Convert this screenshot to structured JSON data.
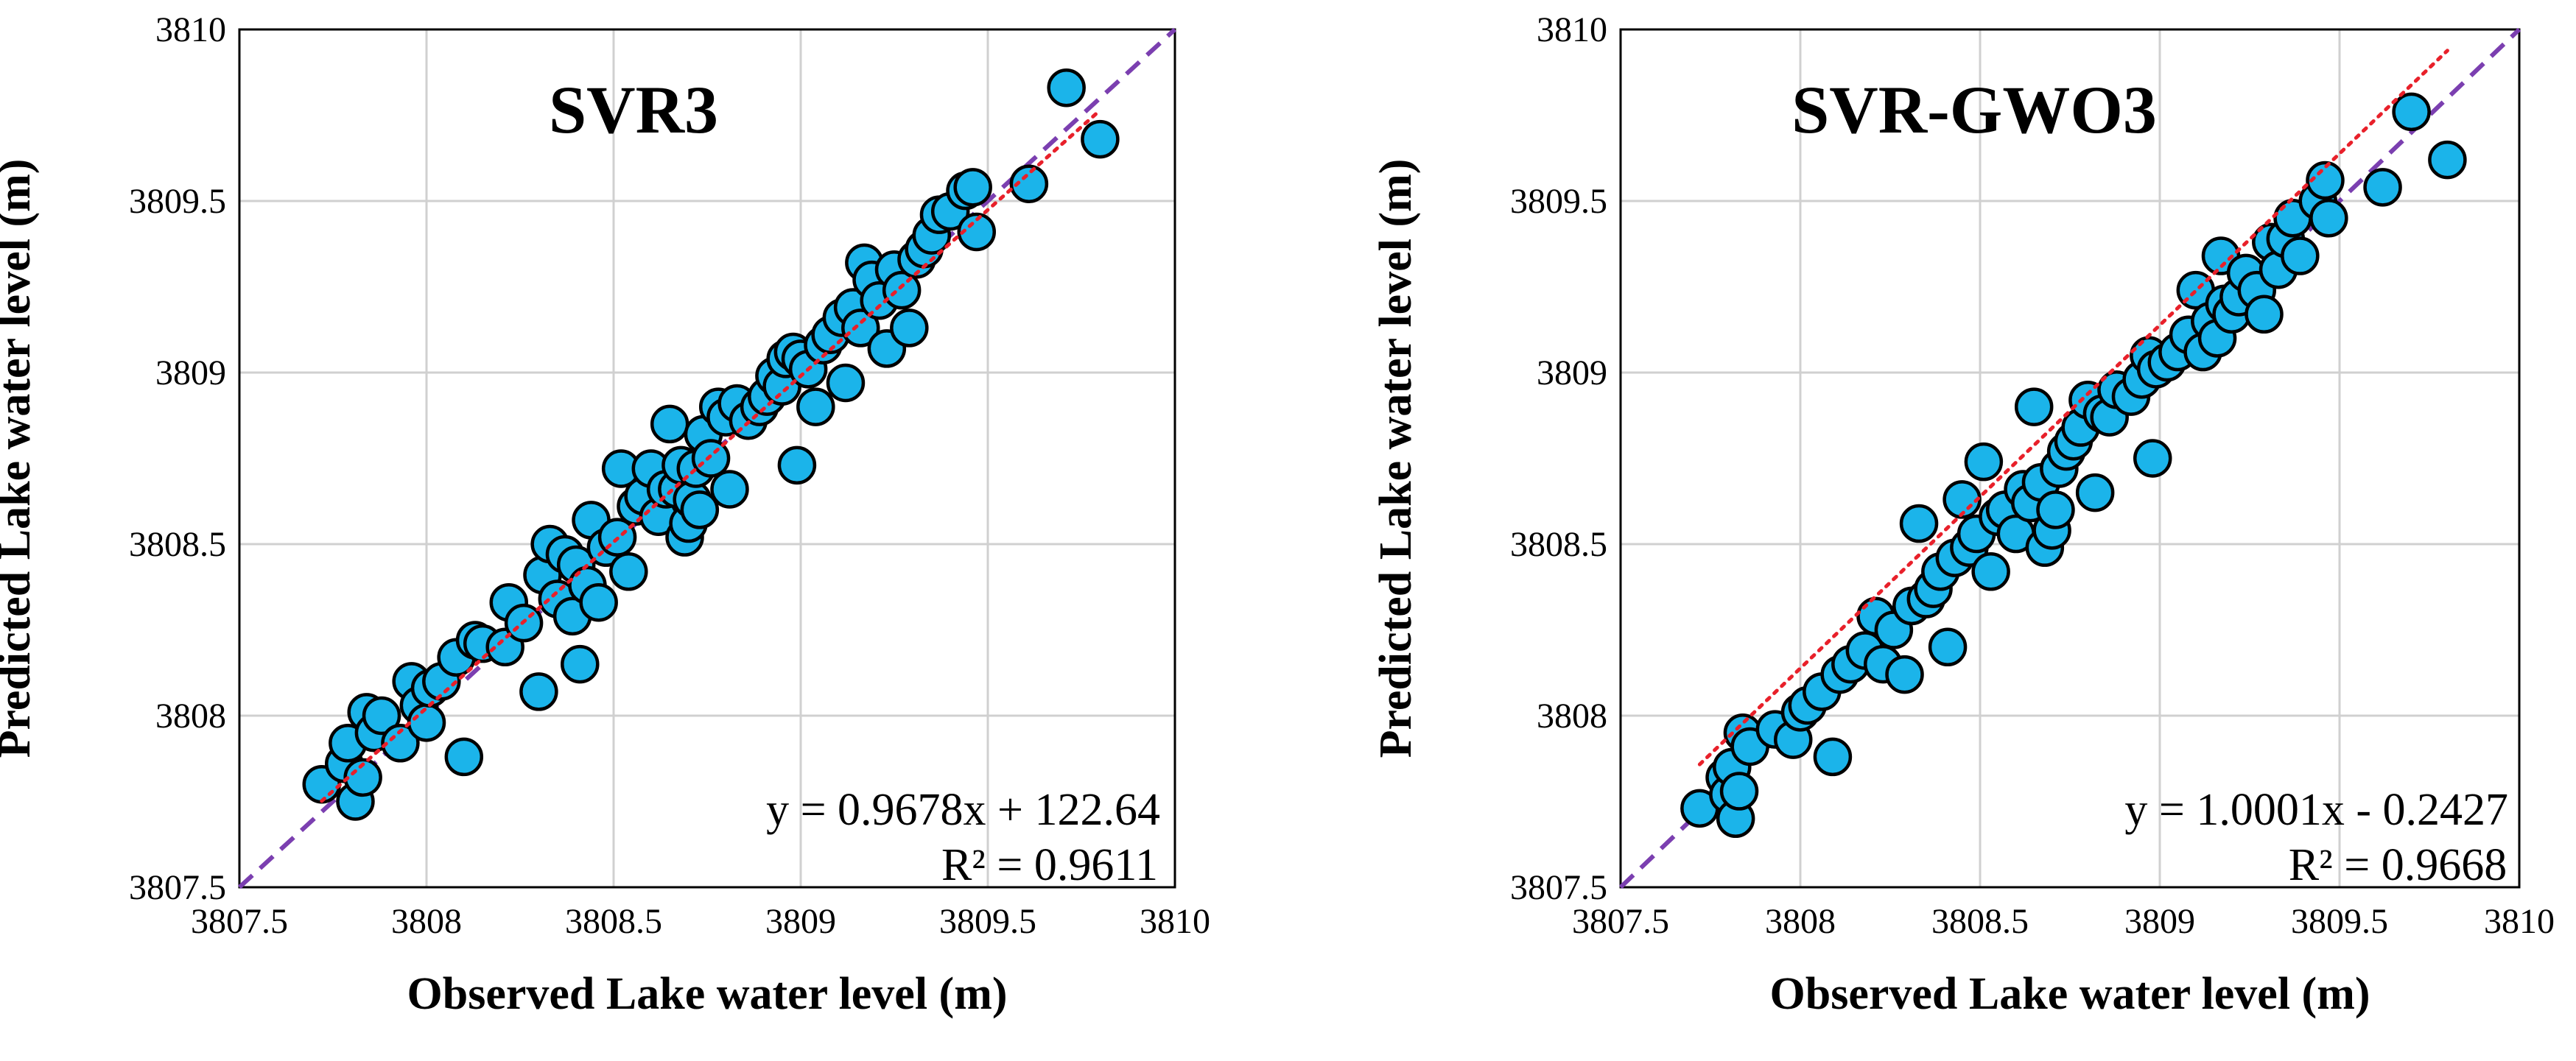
{
  "chart_data": [
    {
      "type": "scatter",
      "title": "SVR3",
      "xlabel": "Observed Lake water level (m)",
      "ylabel": "Predicted Lake water level (m)",
      "xlim": [
        3807.5,
        3810
      ],
      "ylim": [
        3807.5,
        3810
      ],
      "x_ticks": [
        "3807.5",
        "3808",
        "3808.5",
        "3809",
        "3809.5",
        "3810"
      ],
      "y_ticks": [
        "3807.5",
        "3808",
        "3808.5",
        "3809",
        "3809.5",
        "3810"
      ],
      "grid": true,
      "equation": "y = 0.9678x + 122.64",
      "r_squared": "R² = 0.9611",
      "fit": {
        "slope": 0.9678,
        "intercept": 122.64
      },
      "points": [
        [
          3807.72,
          3807.8
        ],
        [
          3807.78,
          3807.86
        ],
        [
          3807.79,
          3807.92
        ],
        [
          3807.81,
          3807.75
        ],
        [
          3807.83,
          3807.82
        ],
        [
          3807.84,
          3808.01
        ],
        [
          3807.86,
          3807.95
        ],
        [
          3807.88,
          3808.0
        ],
        [
          3807.93,
          3807.92
        ],
        [
          3807.96,
          3808.1
        ],
        [
          3807.98,
          3808.03
        ],
        [
          3808.0,
          3807.98
        ],
        [
          3808.01,
          3808.08
        ],
        [
          3808.04,
          3808.1
        ],
        [
          3808.08,
          3808.17
        ],
        [
          3808.1,
          3807.88
        ],
        [
          3808.13,
          3808.22
        ],
        [
          3808.15,
          3808.21
        ],
        [
          3808.21,
          3808.2
        ],
        [
          3808.22,
          3808.33
        ],
        [
          3808.26,
          3808.27
        ],
        [
          3808.3,
          3808.07
        ],
        [
          3808.31,
          3808.41
        ],
        [
          3808.33,
          3808.5
        ],
        [
          3808.35,
          3808.34
        ],
        [
          3808.37,
          3808.47
        ],
        [
          3808.39,
          3808.29
        ],
        [
          3808.4,
          3808.44
        ],
        [
          3808.41,
          3808.15
        ],
        [
          3808.43,
          3808.38
        ],
        [
          3808.44,
          3808.57
        ],
        [
          3808.46,
          3808.33
        ],
        [
          3808.48,
          3808.49
        ],
        [
          3808.51,
          3808.52
        ],
        [
          3808.52,
          3808.72
        ],
        [
          3808.54,
          3808.42
        ],
        [
          3808.56,
          3808.61
        ],
        [
          3808.58,
          3808.64
        ],
        [
          3808.6,
          3808.72
        ],
        [
          3808.62,
          3808.58
        ],
        [
          3808.64,
          3808.66
        ],
        [
          3808.65,
          3808.85
        ],
        [
          3808.67,
          3808.66
        ],
        [
          3808.68,
          3808.73
        ],
        [
          3808.69,
          3808.52
        ],
        [
          3808.7,
          3808.56
        ],
        [
          3808.71,
          3808.63
        ],
        [
          3808.72,
          3808.72
        ],
        [
          3808.73,
          3808.6
        ],
        [
          3808.74,
          3808.82
        ],
        [
          3808.76,
          3808.75
        ],
        [
          3808.78,
          3808.9
        ],
        [
          3808.8,
          3808.87
        ],
        [
          3808.81,
          3808.66
        ],
        [
          3808.83,
          3808.91
        ],
        [
          3808.86,
          3808.86
        ],
        [
          3808.89,
          3808.9
        ],
        [
          3808.91,
          3808.93
        ],
        [
          3808.93,
          3808.99
        ],
        [
          3808.95,
          3808.96
        ],
        [
          3808.96,
          3809.04
        ],
        [
          3808.98,
          3809.06
        ],
        [
          3808.99,
          3808.73
        ],
        [
          3809.0,
          3809.04
        ],
        [
          3809.02,
          3809.01
        ],
        [
          3809.04,
          3808.9
        ],
        [
          3809.06,
          3809.08
        ],
        [
          3809.08,
          3809.11
        ],
        [
          3809.11,
          3809.16
        ],
        [
          3809.12,
          3808.97
        ],
        [
          3809.14,
          3809.19
        ],
        [
          3809.16,
          3809.13
        ],
        [
          3809.17,
          3809.32
        ],
        [
          3809.19,
          3809.27
        ],
        [
          3809.21,
          3809.21
        ],
        [
          3809.23,
          3809.07
        ],
        [
          3809.25,
          3809.3
        ],
        [
          3809.27,
          3809.24
        ],
        [
          3809.29,
          3809.13
        ],
        [
          3809.31,
          3809.33
        ],
        [
          3809.33,
          3809.36
        ],
        [
          3809.35,
          3809.4
        ],
        [
          3809.37,
          3809.46
        ],
        [
          3809.4,
          3809.47
        ],
        [
          3809.44,
          3809.53
        ],
        [
          3809.46,
          3809.54
        ],
        [
          3809.47,
          3809.41
        ],
        [
          3809.61,
          3809.55
        ],
        [
          3809.71,
          3809.83
        ],
        [
          3809.8,
          3809.68
        ]
      ]
    },
    {
      "type": "scatter",
      "title": "SVR-GWO3",
      "xlabel": "Observed Lake water level (m)",
      "ylabel": "Predicted Lake water level (m)",
      "xlim": [
        3807.5,
        3810
      ],
      "ylim": [
        3807.5,
        3810
      ],
      "x_ticks": [
        "3807.5",
        "3808",
        "3808.5",
        "3809",
        "3809.5",
        "3810"
      ],
      "y_ticks": [
        "3807.5",
        "3808",
        "3808.5",
        "3809",
        "3809.5",
        "3810"
      ],
      "grid": true,
      "equation": "y = 1.0001x - 0.2427",
      "r_squared": "R² = 0.9668",
      "fit": {
        "slope": 1.0001,
        "intercept": -0.2427
      },
      "points": [
        [
          3807.72,
          3807.73
        ],
        [
          3807.79,
          3807.82
        ],
        [
          3807.8,
          3807.77
        ],
        [
          3807.81,
          3807.85
        ],
        [
          3807.82,
          3807.7
        ],
        [
          3807.83,
          3807.78
        ],
        [
          3807.84,
          3807.95
        ],
        [
          3807.86,
          3807.91
        ],
        [
          3807.93,
          3807.96
        ],
        [
          3807.98,
          3807.93
        ],
        [
          3808.0,
          3808.01
        ],
        [
          3808.02,
          3808.03
        ],
        [
          3808.06,
          3808.07
        ],
        [
          3808.09,
          3807.88
        ],
        [
          3808.11,
          3808.12
        ],
        [
          3808.14,
          3808.15
        ],
        [
          3808.18,
          3808.19
        ],
        [
          3808.21,
          3808.29
        ],
        [
          3808.23,
          3808.15
        ],
        [
          3808.26,
          3808.25
        ],
        [
          3808.29,
          3808.12
        ],
        [
          3808.31,
          3808.32
        ],
        [
          3808.33,
          3808.56
        ],
        [
          3808.35,
          3808.34
        ],
        [
          3808.37,
          3808.37
        ],
        [
          3808.39,
          3808.42
        ],
        [
          3808.41,
          3808.2
        ],
        [
          3808.43,
          3808.46
        ],
        [
          3808.45,
          3808.63
        ],
        [
          3808.47,
          3808.49
        ],
        [
          3808.49,
          3808.53
        ],
        [
          3808.51,
          3808.74
        ],
        [
          3808.53,
          3808.42
        ],
        [
          3808.55,
          3808.58
        ],
        [
          3808.57,
          3808.6
        ],
        [
          3808.6,
          3808.53
        ],
        [
          3808.62,
          3808.66
        ],
        [
          3808.64,
          3808.62
        ],
        [
          3808.65,
          3808.9
        ],
        [
          3808.67,
          3808.68
        ],
        [
          3808.68,
          3808.49
        ],
        [
          3808.7,
          3808.54
        ],
        [
          3808.71,
          3808.6
        ],
        [
          3808.72,
          3808.72
        ],
        [
          3808.74,
          3808.77
        ],
        [
          3808.76,
          3808.8
        ],
        [
          3808.78,
          3808.84
        ],
        [
          3808.8,
          3808.92
        ],
        [
          3808.82,
          3808.65
        ],
        [
          3808.84,
          3808.88
        ],
        [
          3808.86,
          3808.87
        ],
        [
          3808.88,
          3808.95
        ],
        [
          3808.92,
          3808.93
        ],
        [
          3808.95,
          3808.98
        ],
        [
          3808.97,
          3809.05
        ],
        [
          3808.98,
          3808.75
        ],
        [
          3808.99,
          3809.01
        ],
        [
          3809.02,
          3809.03
        ],
        [
          3809.05,
          3809.06
        ],
        [
          3809.08,
          3809.11
        ],
        [
          3809.1,
          3809.24
        ],
        [
          3809.12,
          3809.06
        ],
        [
          3809.14,
          3809.15
        ],
        [
          3809.16,
          3809.1
        ],
        [
          3809.17,
          3809.34
        ],
        [
          3809.18,
          3809.2
        ],
        [
          3809.2,
          3809.17
        ],
        [
          3809.22,
          3809.22
        ],
        [
          3809.24,
          3809.29
        ],
        [
          3809.27,
          3809.24
        ],
        [
          3809.29,
          3809.17
        ],
        [
          3809.31,
          3809.38
        ],
        [
          3809.33,
          3809.3
        ],
        [
          3809.35,
          3809.39
        ],
        [
          3809.37,
          3809.45
        ],
        [
          3809.39,
          3809.34
        ],
        [
          3809.44,
          3809.5
        ],
        [
          3809.46,
          3809.56
        ],
        [
          3809.47,
          3809.45
        ],
        [
          3809.62,
          3809.54
        ],
        [
          3809.7,
          3809.76
        ],
        [
          3809.8,
          3809.62
        ]
      ]
    }
  ]
}
